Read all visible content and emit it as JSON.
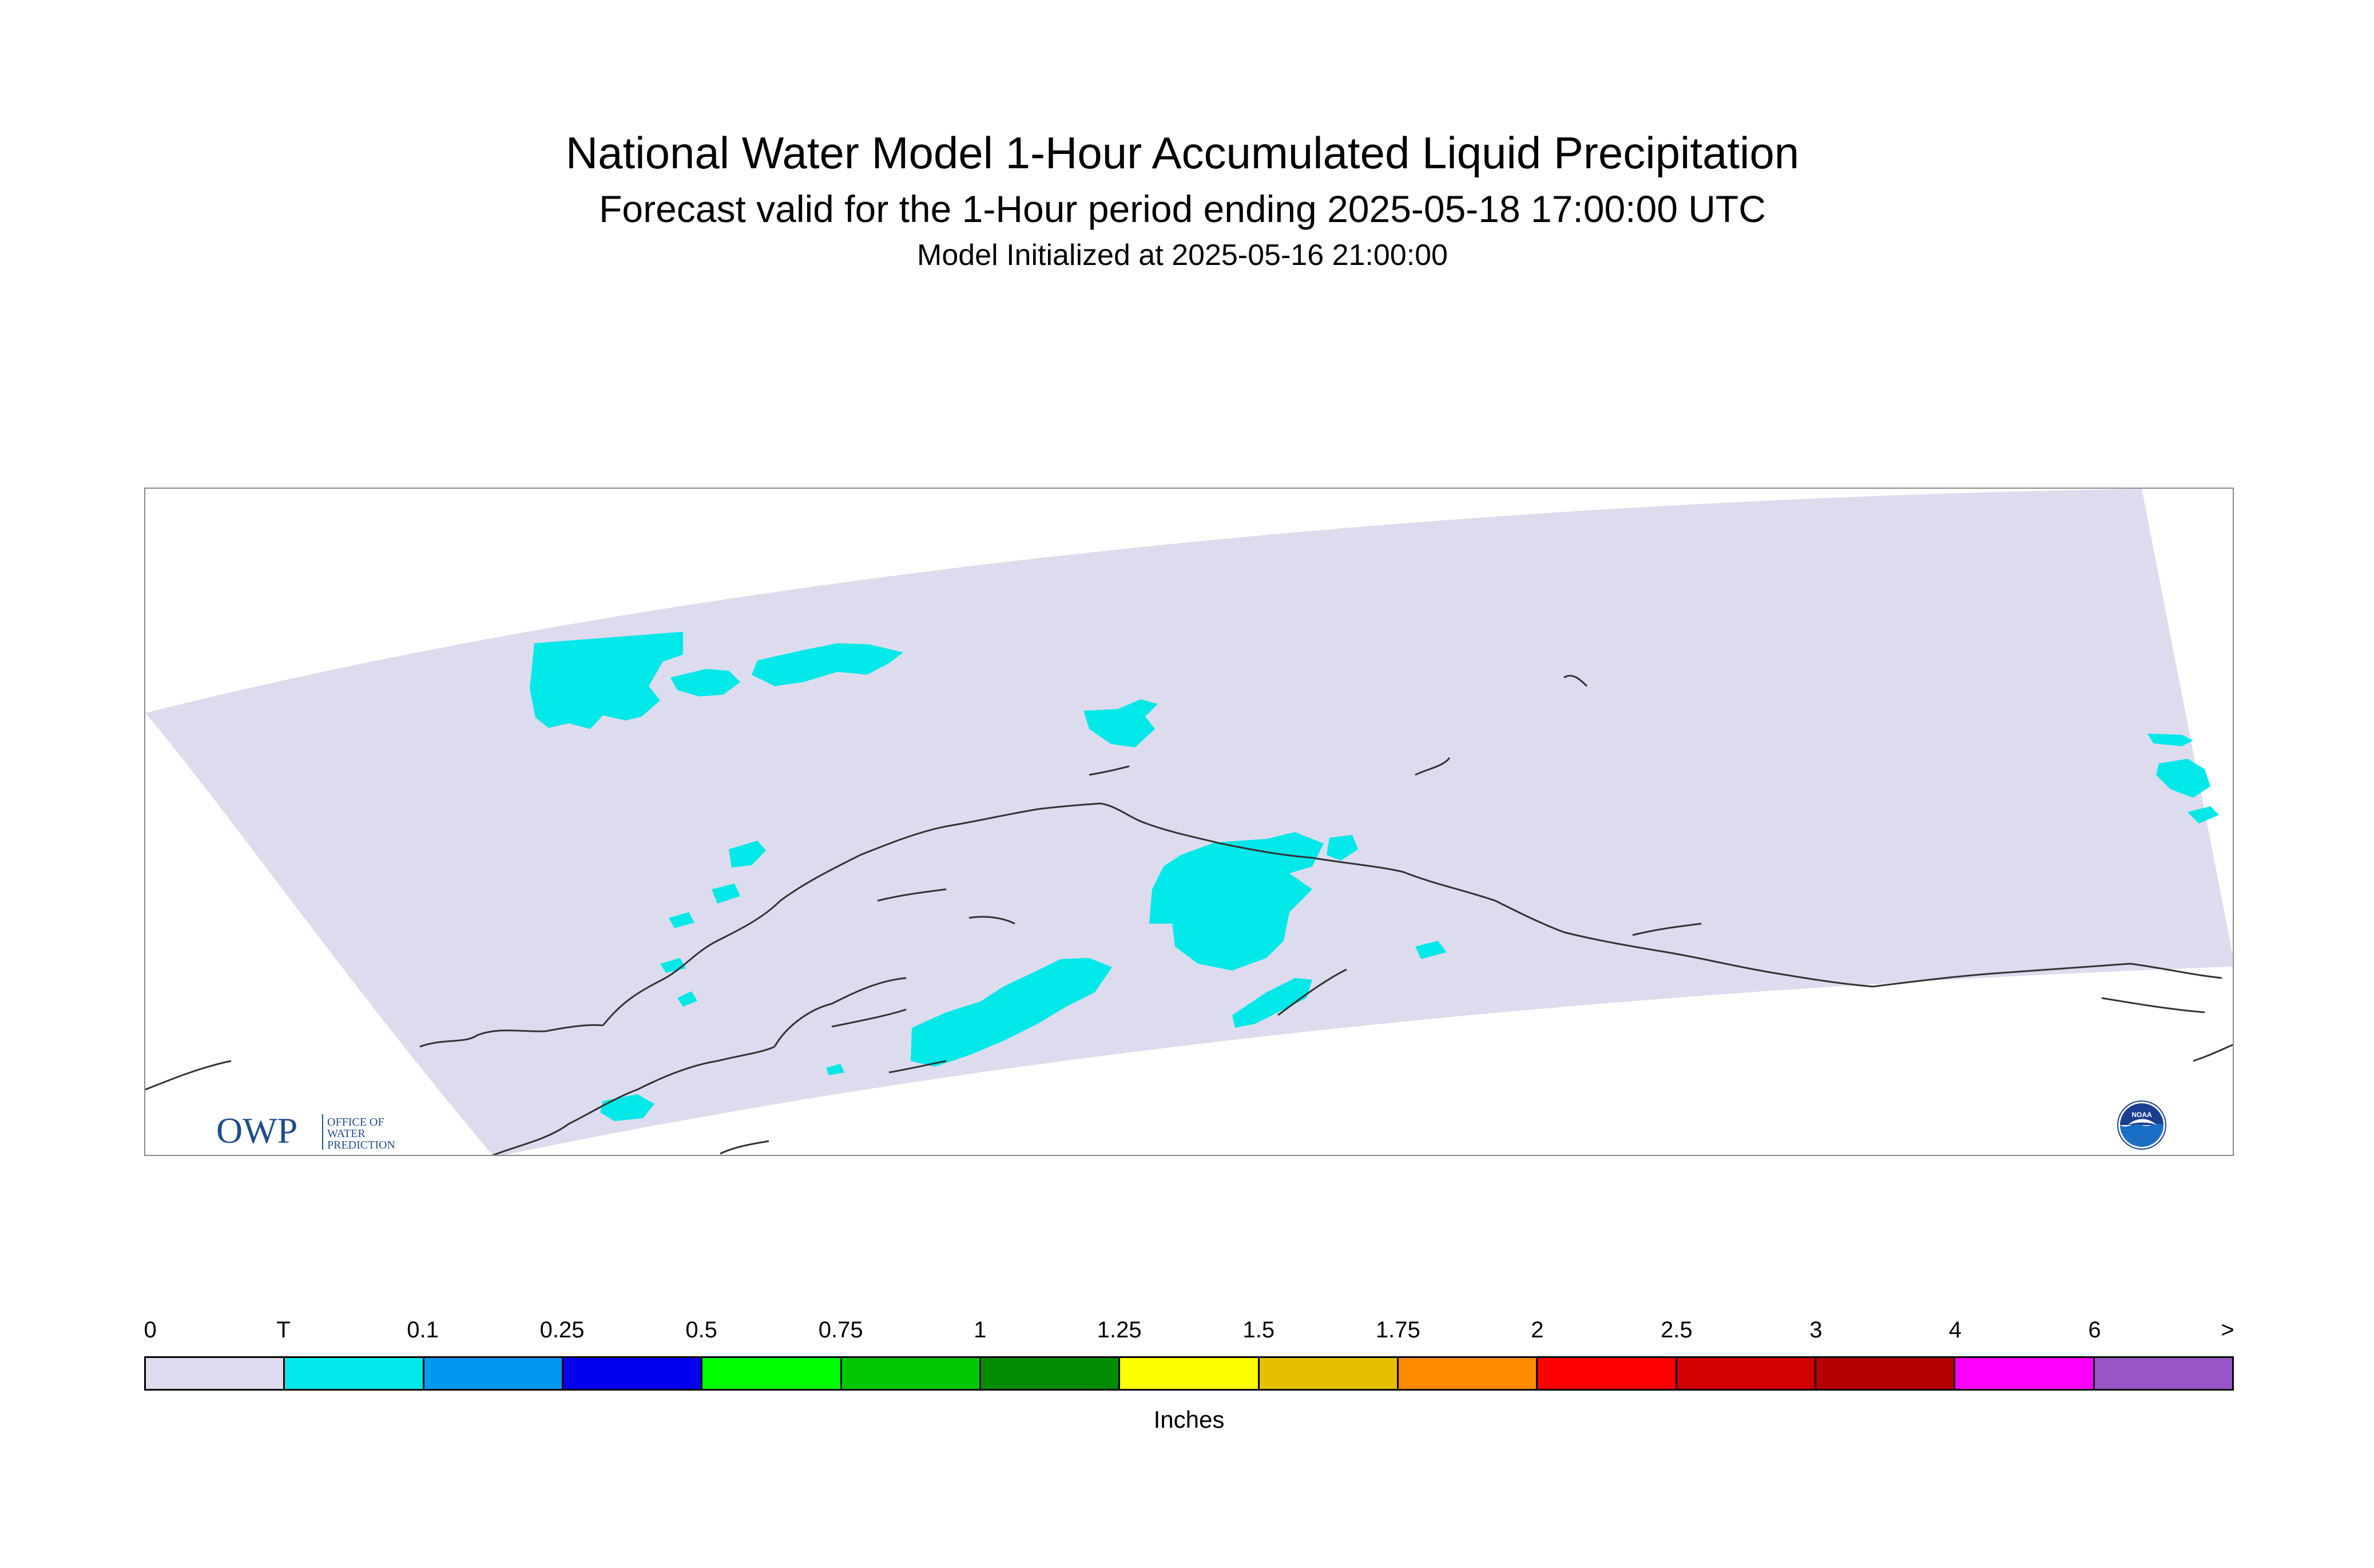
{
  "title": {
    "main": "National Water Model 1-Hour Accumulated Liquid Precipitation",
    "sub": "Forecast valid for the 1-Hour period ending 2025-05-18 17:00:00 UTC",
    "init": "Model Initialized at 2025-05-16 21:00:00"
  },
  "map": {
    "domain_color": "#dcdcee",
    "precip_color": "#00e8e8",
    "coast_color": "#333333",
    "frame_color": "#8a8a8a"
  },
  "logos": {
    "owp": {
      "mark": "OWP",
      "line1": "OFFICE OF",
      "line2": "WATER",
      "line3": "PREDICTION",
      "color": "#1f4e8c"
    },
    "noaa": {
      "text": "NOAA",
      "color": "#1a6fc4"
    }
  },
  "legend": {
    "labels": [
      "0",
      "T",
      "0.1",
      "0.25",
      "0.5",
      "0.75",
      "1",
      "1.25",
      "1.5",
      "1.75",
      "2",
      "2.5",
      "3",
      "4",
      "6",
      ">"
    ],
    "colors": [
      "#dcdcee",
      "#00e8e8",
      "#0099f0",
      "#0000f0",
      "#00ff00",
      "#00c800",
      "#008c00",
      "#ffff00",
      "#e6c000",
      "#ff8c00",
      "#ff0000",
      "#d20000",
      "#b40000",
      "#ff00ff",
      "#9a55c8"
    ],
    "units": "Inches"
  }
}
